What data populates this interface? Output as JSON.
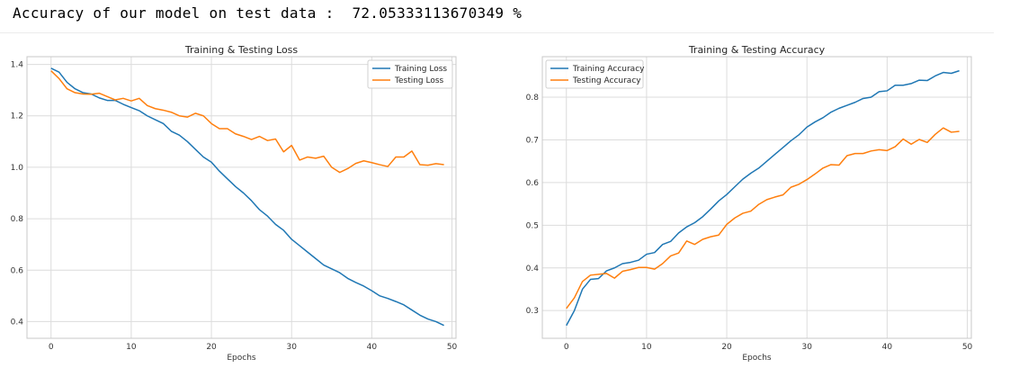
{
  "output": {
    "text": "Accuracy of our model on test data :  72.05333113670349 %"
  },
  "colors": {
    "blue": "#1f77b4",
    "orange": "#ff7f0e",
    "grid": "#dcdcdc",
    "spine": "#c8c8c8"
  },
  "chart_data": [
    {
      "type": "line",
      "title": "Training & Testing Loss",
      "xlabel": "Epochs",
      "ylabel": "",
      "xlim": [
        -3,
        50.5
      ],
      "ylim": [
        0.335,
        1.43
      ],
      "xticks": [
        0,
        10,
        20,
        30,
        40,
        50
      ],
      "yticks": [
        0.4,
        0.6,
        0.8,
        1.0,
        1.2,
        1.4
      ],
      "ytick_labels": [
        "0.4",
        "0.6",
        "0.8",
        "1.0",
        "1.2",
        "1.4"
      ],
      "grid": true,
      "legend_position": "top-right",
      "x": [
        0,
        1,
        2,
        3,
        4,
        5,
        6,
        7,
        8,
        9,
        10,
        11,
        12,
        13,
        14,
        15,
        16,
        17,
        18,
        19,
        20,
        21,
        22,
        23,
        24,
        25,
        26,
        27,
        28,
        29,
        30,
        31,
        32,
        33,
        34,
        35,
        36,
        37,
        38,
        39,
        40,
        41,
        42,
        43,
        44,
        45,
        46,
        47,
        48,
        49
      ],
      "series": [
        {
          "name": "Training Loss",
          "color": "#1f77b4",
          "values": [
            1.385,
            1.37,
            1.33,
            1.305,
            1.29,
            1.285,
            1.27,
            1.26,
            1.26,
            1.245,
            1.232,
            1.22,
            1.2,
            1.185,
            1.17,
            1.14,
            1.125,
            1.1,
            1.07,
            1.04,
            1.02,
            0.985,
            0.955,
            0.925,
            0.9,
            0.87,
            0.835,
            0.81,
            0.778,
            0.755,
            0.72,
            0.695,
            0.67,
            0.645,
            0.62,
            0.605,
            0.59,
            0.568,
            0.552,
            0.538,
            0.52,
            0.5,
            0.49,
            0.478,
            0.465,
            0.445,
            0.425,
            0.41,
            0.4,
            0.385
          ]
        },
        {
          "name": "Testing Loss",
          "color": "#ff7f0e",
          "values": [
            1.375,
            1.345,
            1.305,
            1.29,
            1.285,
            1.284,
            1.288,
            1.275,
            1.262,
            1.268,
            1.258,
            1.268,
            1.24,
            1.228,
            1.222,
            1.214,
            1.2,
            1.195,
            1.21,
            1.2,
            1.17,
            1.15,
            1.15,
            1.13,
            1.12,
            1.108,
            1.12,
            1.104,
            1.11,
            1.06,
            1.085,
            1.028,
            1.04,
            1.035,
            1.043,
            1.0,
            0.98,
            0.995,
            1.015,
            1.025,
            1.018,
            1.01,
            1.003,
            1.04,
            1.04,
            1.063,
            1.01,
            1.008,
            1.014,
            1.01
          ]
        }
      ]
    },
    {
      "type": "line",
      "title": "Training & Testing Accuracy",
      "xlabel": "Epochs",
      "ylabel": "",
      "xlim": [
        -3,
        50.5
      ],
      "ylim": [
        0.235,
        0.895
      ],
      "xticks": [
        0,
        10,
        20,
        30,
        40,
        50
      ],
      "yticks": [
        0.3,
        0.4,
        0.5,
        0.6,
        0.7,
        0.8
      ],
      "ytick_labels": [
        "0.3",
        "0.4",
        "0.5",
        "0.6",
        "0.7",
        "0.8"
      ],
      "grid": true,
      "legend_position": "top-left",
      "x": [
        0,
        1,
        2,
        3,
        4,
        5,
        6,
        7,
        8,
        9,
        10,
        11,
        12,
        13,
        14,
        15,
        16,
        17,
        18,
        19,
        20,
        21,
        22,
        23,
        24,
        25,
        26,
        27,
        28,
        29,
        30,
        31,
        32,
        33,
        34,
        35,
        36,
        37,
        38,
        39,
        40,
        41,
        42,
        43,
        44,
        45,
        46,
        47,
        48,
        49
      ],
      "series": [
        {
          "name": "Training Accuracy",
          "color": "#1f77b4",
          "values": [
            0.265,
            0.3,
            0.35,
            0.373,
            0.375,
            0.393,
            0.4,
            0.41,
            0.413,
            0.418,
            0.432,
            0.436,
            0.455,
            0.462,
            0.482,
            0.496,
            0.506,
            0.52,
            0.538,
            0.557,
            0.572,
            0.59,
            0.608,
            0.622,
            0.634,
            0.65,
            0.666,
            0.682,
            0.698,
            0.712,
            0.73,
            0.742,
            0.752,
            0.765,
            0.774,
            0.781,
            0.788,
            0.797,
            0.8,
            0.813,
            0.815,
            0.828,
            0.828,
            0.832,
            0.84,
            0.839,
            0.85,
            0.858,
            0.856,
            0.862
          ]
        },
        {
          "name": "Testing Accuracy",
          "color": "#ff7f0e",
          "values": [
            0.305,
            0.33,
            0.368,
            0.383,
            0.385,
            0.387,
            0.376,
            0.392,
            0.396,
            0.401,
            0.401,
            0.397,
            0.41,
            0.428,
            0.435,
            0.463,
            0.455,
            0.467,
            0.473,
            0.477,
            0.502,
            0.517,
            0.528,
            0.533,
            0.549,
            0.56,
            0.566,
            0.571,
            0.589,
            0.596,
            0.607,
            0.62,
            0.634,
            0.642,
            0.641,
            0.663,
            0.668,
            0.668,
            0.674,
            0.677,
            0.675,
            0.684,
            0.702,
            0.69,
            0.701,
            0.694,
            0.713,
            0.728,
            0.718,
            0.72
          ]
        }
      ]
    }
  ]
}
